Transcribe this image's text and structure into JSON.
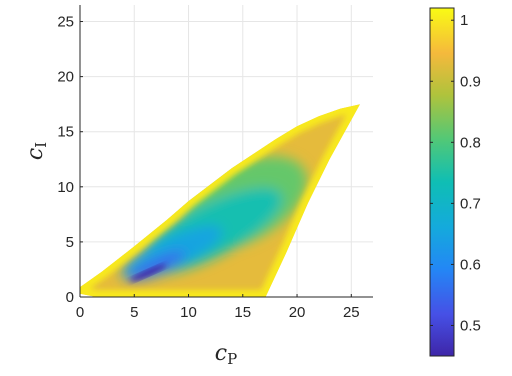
{
  "chart_data": {
    "type": "heatmap",
    "title": "",
    "xlabel": "c",
    "xlabel_sub": "P",
    "ylabel": "c",
    "ylabel_sub": "I",
    "xlim": [
      0,
      27
    ],
    "ylim": [
      0,
      26.5
    ],
    "xticks": [
      "0",
      "5",
      "10",
      "15",
      "20",
      "25"
    ],
    "yticks": [
      "0",
      "5",
      "10",
      "15",
      "20",
      "25"
    ],
    "grid": true,
    "colormap": "parula",
    "colorbar": {
      "range": [
        0.45,
        1.02
      ],
      "ticks": [
        "0.5",
        "0.6",
        "0.7",
        "0.8",
        "0.9",
        "1"
      ],
      "placement": "right"
    },
    "region": {
      "upper_boundary": [
        [
          0,
          0.9
        ],
        [
          2,
          2.3
        ],
        [
          5,
          4.6
        ],
        [
          8,
          7
        ],
        [
          10,
          8.7
        ],
        [
          12,
          10.2
        ],
        [
          14,
          11.7
        ],
        [
          16,
          13
        ],
        [
          18,
          14.3
        ],
        [
          20,
          15.5
        ],
        [
          22,
          16.4
        ],
        [
          24,
          17.1
        ],
        [
          25.8,
          17.5
        ]
      ],
      "lower_boundary": [
        [
          0,
          0.3
        ],
        [
          1.5,
          0
        ],
        [
          17.1,
          0
        ]
      ],
      "right_boundary": [
        [
          17.1,
          0
        ],
        [
          19,
          4
        ],
        [
          21,
          8.5
        ],
        [
          23,
          12.5
        ],
        [
          25.8,
          17.5
        ]
      ]
    },
    "features": {
      "minimum_value": 0.45,
      "minimum_location": [
        6.5,
        2
      ],
      "edge_value": 1.0
    }
  }
}
